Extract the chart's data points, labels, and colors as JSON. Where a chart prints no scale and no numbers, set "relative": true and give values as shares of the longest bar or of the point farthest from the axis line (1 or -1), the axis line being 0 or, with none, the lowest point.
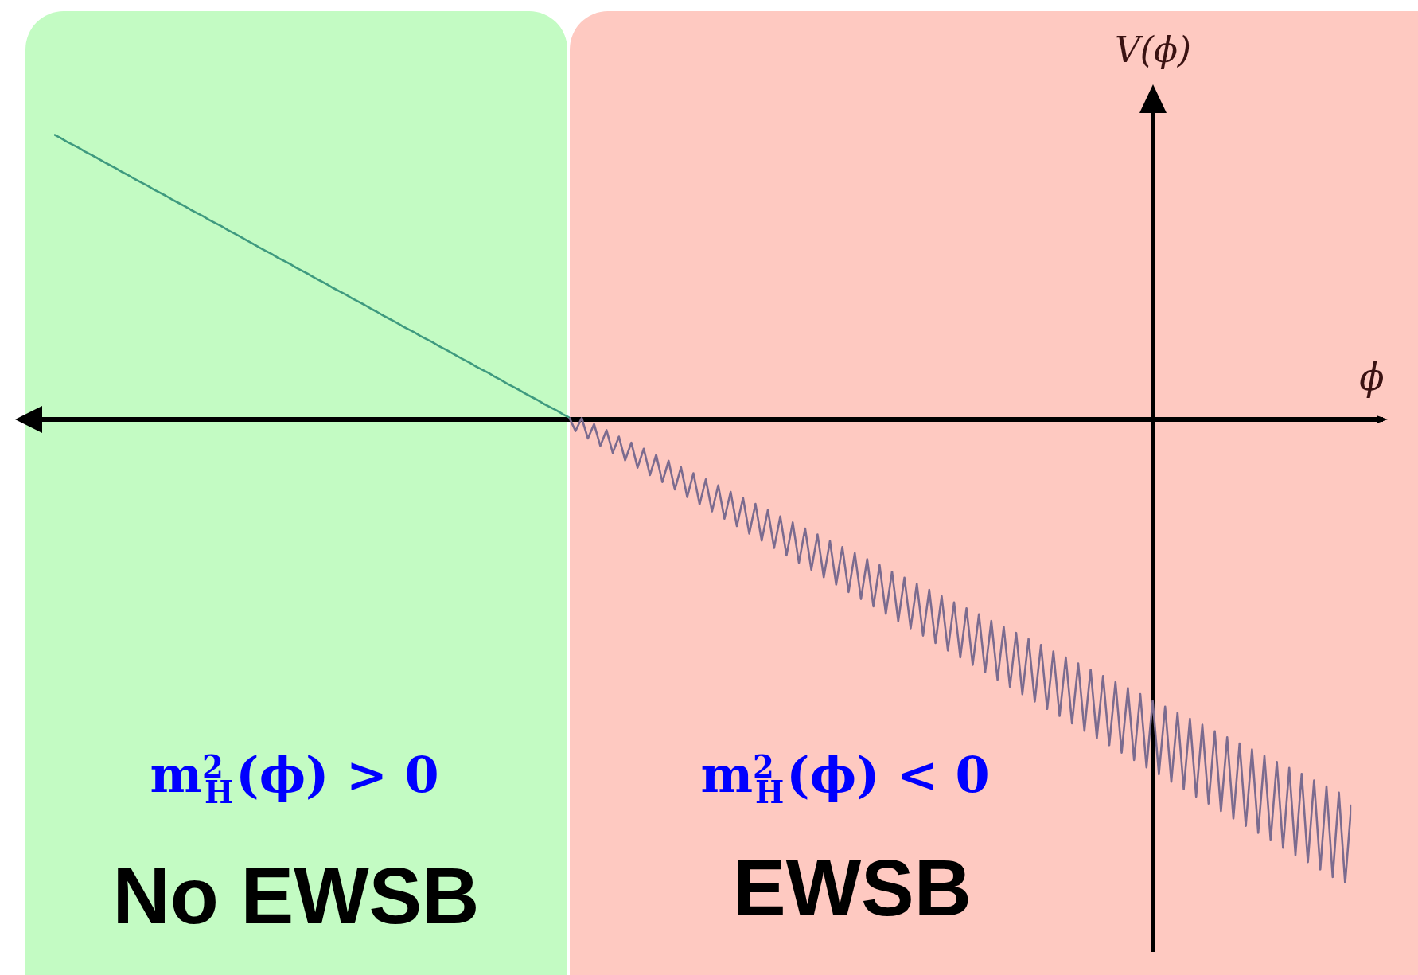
{
  "chart_data": {
    "type": "line",
    "relative": true,
    "marker": "none",
    "xlabel": "ϕ",
    "ylabel": "V(ϕ)",
    "annotations": [
      "m$^{2}$$_{H}$(ϕ) > 0",
      "No EWSB",
      "m$^{2}$$_{H}$(ϕ) < 0",
      "EWSB"
    ],
    "categories": [
      null,
      null,
      null,
      null,
      null,
      null,
      null,
      null,
      null,
      null,
      null,
      null,
      null,
      null,
      null,
      null,
      null,
      null,
      null,
      null,
      null,
      null,
      null,
      null,
      null,
      null,
      null,
      null,
      null,
      null,
      null,
      null,
      null,
      null,
      null,
      null,
      null,
      null,
      null,
      null,
      null,
      null,
      null,
      null,
      null,
      null,
      null,
      null,
      null,
      null,
      null,
      null,
      null,
      null,
      null,
      null,
      null,
      null,
      null,
      null,
      null,
      null,
      null,
      null,
      null,
      null,
      null,
      null,
      null,
      null,
      null,
      null,
      null,
      null,
      null,
      null,
      null,
      null,
      null,
      null,
      null,
      null,
      null,
      null,
      null,
      null,
      null,
      null,
      null,
      null,
      null,
      null,
      null,
      null,
      null,
      null,
      null,
      null,
      null,
      null,
      null,
      null,
      null,
      null,
      null,
      null,
      null,
      null,
      null,
      null,
      null,
      null,
      null,
      null,
      null,
      null,
      null,
      null,
      null,
      null,
      null,
      null,
      null,
      null,
      null,
      null,
      null,
      null,
      null,
      null,
      null,
      null,
      null,
      null,
      null,
      null,
      null,
      null,
      null,
      null,
      null,
      null,
      null,
      null,
      null,
      null,
      null,
      null,
      null,
      null,
      null,
      null,
      null,
      null,
      null,
      null,
      null,
      null,
      null,
      null,
      null,
      null,
      null,
      null,
      null,
      null,
      null,
      null,
      null,
      null,
      null,
      null,
      null,
      null,
      null,
      null,
      null,
      null,
      null,
      null,
      null,
      null,
      null,
      null,
      null,
      null,
      null,
      null,
      null,
      null,
      null,
      null,
      null,
      null,
      null,
      null,
      null,
      null,
      null,
      null,
      null,
      null,
      null,
      null,
      null,
      null,
      null,
      null,
      null,
      null
    ],
    "series": [
      {
        "color": "#3f9a7f",
        "values": [
          0.614,
          0.607,
          0.599,
          0.592,
          0.585,
          0.577,
          0.57,
          0.563,
          0.555,
          0.548,
          0.541,
          0.533,
          0.526,
          0.518,
          0.511,
          0.504,
          0.496,
          0.489,
          0.482,
          0.474,
          0.467,
          0.46,
          0.452,
          0.445,
          0.438,
          0.43,
          0.423,
          0.416,
          0.408,
          0.401,
          0.394,
          0.386,
          0.379,
          0.371,
          0.364,
          0.357,
          0.349,
          0.342,
          0.335,
          0.327,
          0.32,
          0.313,
          0.305,
          0.298,
          0.291,
          0.283,
          0.276,
          0.269,
          0.261,
          0.254,
          0.247,
          0.239,
          0.232,
          0.224,
          0.217,
          0.21,
          0.202,
          0.195,
          0.188,
          0.18,
          0.173,
          0.166,
          0.158,
          0.151,
          0.144,
          0.136,
          0.129,
          0.122,
          0.114,
          0.107,
          0.1,
          0.092,
          0.085,
          0.077,
          0.07,
          0.063,
          0.055,
          0.048,
          0.041,
          0.033,
          0.026,
          0.019,
          0.011,
          0.004,
          null,
          null,
          null,
          null,
          null,
          null,
          null,
          null,
          null,
          null,
          null,
          null,
          null,
          null,
          null,
          null,
          null,
          null,
          null,
          null,
          null,
          null,
          null,
          null,
          null,
          null,
          null,
          null,
          null,
          null,
          null,
          null,
          null,
          null,
          null,
          null,
          null,
          null,
          null,
          null,
          null,
          null,
          null,
          null,
          null,
          null,
          null,
          null,
          null,
          null,
          null,
          null,
          null,
          null,
          null,
          null,
          null,
          null,
          null,
          null,
          null,
          null,
          null,
          null,
          null,
          null,
          null,
          null,
          null,
          null,
          null,
          null,
          null,
          null,
          null,
          null,
          null,
          null,
          null,
          null,
          null,
          null,
          null,
          null,
          null,
          null,
          null,
          null,
          null,
          null,
          null,
          null,
          null,
          null,
          null,
          null,
          null,
          null,
          null,
          null,
          null,
          null,
          null,
          null,
          null,
          null,
          null,
          null,
          null,
          null,
          null,
          null,
          null,
          null,
          null,
          null,
          null,
          null,
          null,
          null,
          null,
          null,
          null,
          null,
          null,
          null
        ]
      },
      {
        "color": "#7b6b8f",
        "values": [
          null,
          null,
          null,
          null,
          null,
          null,
          null,
          null,
          null,
          null,
          null,
          null,
          null,
          null,
          null,
          null,
          null,
          null,
          null,
          null,
          null,
          null,
          null,
          null,
          null,
          null,
          null,
          null,
          null,
          null,
          null,
          null,
          null,
          null,
          null,
          null,
          null,
          null,
          null,
          null,
          null,
          null,
          null,
          null,
          null,
          null,
          null,
          null,
          null,
          null,
          null,
          null,
          null,
          null,
          null,
          null,
          null,
          null,
          null,
          null,
          null,
          null,
          null,
          null,
          null,
          null,
          null,
          null,
          null,
          null,
          null,
          null,
          null,
          null,
          null,
          null,
          null,
          null,
          null,
          null,
          null,
          null,
          null,
          0.004,
          -0.025,
          0.003,
          -0.041,
          -0.01,
          -0.057,
          -0.023,
          -0.072,
          -0.037,
          -0.088,
          -0.05,
          -0.104,
          -0.063,
          -0.12,
          -0.076,
          -0.135,
          -0.089,
          -0.151,
          -0.103,
          -0.167,
          -0.116,
          -0.183,
          -0.129,
          -0.198,
          -0.142,
          -0.214,
          -0.156,
          -0.23,
          -0.169,
          -0.246,
          -0.182,
          -0.261,
          -0.195,
          -0.277,
          -0.209,
          -0.293,
          -0.222,
          -0.309,
          -0.235,
          -0.324,
          -0.248,
          -0.34,
          -0.262,
          -0.356,
          -0.275,
          -0.372,
          -0.288,
          -0.387,
          -0.301,
          -0.403,
          -0.314,
          -0.419,
          -0.328,
          -0.435,
          -0.341,
          -0.45,
          -0.354,
          -0.466,
          -0.367,
          -0.482,
          -0.381,
          -0.498,
          -0.394,
          -0.513,
          -0.407,
          -0.529,
          -0.42,
          -0.545,
          -0.434,
          -0.561,
          -0.447,
          -0.576,
          -0.46,
          -0.592,
          -0.473,
          -0.608,
          -0.486,
          -0.624,
          -0.5,
          -0.639,
          -0.513,
          -0.655,
          -0.526,
          -0.671,
          -0.539,
          -0.687,
          -0.553,
          -0.702,
          -0.566,
          -0.718,
          -0.579,
          -0.734,
          -0.592,
          -0.75,
          -0.606,
          -0.765,
          -0.619,
          -0.781,
          -0.632,
          -0.797,
          -0.645,
          -0.813,
          -0.658,
          -0.828,
          -0.672,
          -0.844,
          -0.685,
          -0.86,
          -0.698,
          -0.876,
          -0.711,
          -0.891,
          -0.725,
          -0.907,
          -0.738,
          -0.923,
          -0.751,
          -0.939,
          -0.764,
          -0.954,
          -0.778,
          -0.97,
          -0.791,
          -0.986,
          -0.804,
          -1.0,
          -0.83
        ]
      }
    ]
  }
}
